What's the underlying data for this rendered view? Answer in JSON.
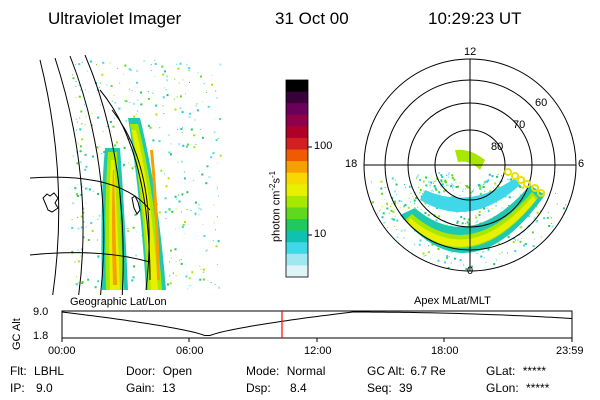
{
  "header": {
    "instrument": "Ultraviolet Imager",
    "date": "31 Oct 00",
    "time": "10:29:23 UT"
  },
  "left_panel": {
    "projection_label": "Geographic Lat/Lon"
  },
  "colorbar": {
    "unit_prefix": "photon cm",
    "unit_exp1": "-2",
    "unit_s": "s",
    "unit_exp2": "-1",
    "ticks": [
      "100",
      "10"
    ],
    "colors": [
      "#000000",
      "#3a003a",
      "#6a005a",
      "#90004a",
      "#b0002a",
      "#d02020",
      "#f05a00",
      "#f8a000",
      "#f8d800",
      "#e8f000",
      "#a8e800",
      "#60d820",
      "#20c860",
      "#10c0b0",
      "#40d8e8",
      "#a0e8f0",
      "#e0f4f8"
    ]
  },
  "polar_panel": {
    "mlt_labels": {
      "top": "12",
      "left": "18",
      "right": "6",
      "bottom": "0"
    },
    "lat_labels": [
      "80",
      "70",
      "60"
    ],
    "projection_label": "Apex MLat/MLT"
  },
  "altitude_plot": {
    "ylabel": "GC Alt",
    "y_ticks": [
      "9.0",
      "1.8"
    ],
    "x_ticks": [
      "00:00",
      "06:00",
      "12:00",
      "18:00",
      "23:59"
    ],
    "marker_color": "#ff0000"
  },
  "footer": {
    "row1": [
      {
        "label": "Flt:",
        "value": "LBHL"
      },
      {
        "label": "Door:",
        "value": "Open"
      },
      {
        "label": "Mode:",
        "value": "Normal"
      },
      {
        "label": "GC Alt:",
        "value": "6.7 Re"
      },
      {
        "label": "GLat:",
        "value": "*****"
      }
    ],
    "row2": [
      {
        "label": "IP:",
        "value": "9.0"
      },
      {
        "label": "Gain:",
        "value": "13"
      },
      {
        "label": "Dsp:",
        "value": "8.4"
      },
      {
        "label": "Seq:",
        "value": "39"
      },
      {
        "label": "GLon:",
        "value": "*****"
      }
    ]
  }
}
